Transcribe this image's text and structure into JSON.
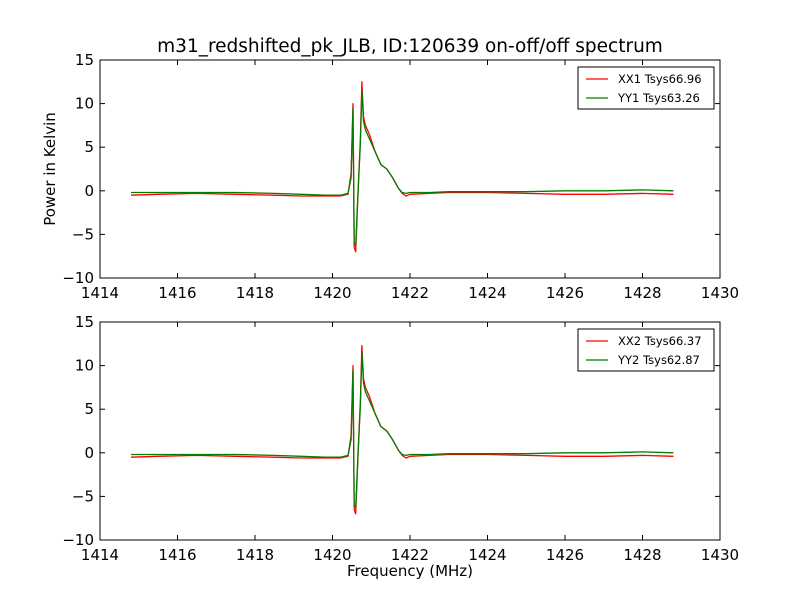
{
  "title": "m31_redshifted_pk_JLB, ID:120639 on-off/off spectrum",
  "colors": {
    "xx": "#ff0000",
    "yy": "#007f00"
  },
  "chart_data": [
    {
      "type": "line",
      "xlabel": "",
      "ylabel": "Power in Kelvin",
      "xlim": [
        1414,
        1430
      ],
      "ylim": [
        -10,
        15
      ],
      "xticks": [
        1414,
        1416,
        1418,
        1420,
        1422,
        1424,
        1426,
        1428,
        1430
      ],
      "yticks": [
        -10,
        -5,
        0,
        5,
        10,
        15
      ],
      "legend_position": "top-right",
      "series": [
        {
          "name": "XX1 Tsys66.96",
          "color": "#ff0000",
          "x": [
            1414.8,
            1415.5,
            1416.5,
            1417.5,
            1418.5,
            1419.2,
            1419.8,
            1420.2,
            1420.4,
            1420.48,
            1420.53,
            1420.56,
            1420.6,
            1420.66,
            1420.72,
            1420.76,
            1420.8,
            1420.85,
            1420.95,
            1421.1,
            1421.25,
            1421.4,
            1421.55,
            1421.7,
            1421.8,
            1421.9,
            1422.0,
            1422.5,
            1423.0,
            1424.0,
            1425.0,
            1426.0,
            1427.0,
            1428.0,
            1428.8
          ],
          "y": [
            -0.5,
            -0.4,
            -0.3,
            -0.4,
            -0.5,
            -0.6,
            -0.6,
            -0.6,
            -0.4,
            2.0,
            10.0,
            -6.5,
            -7.0,
            0.0,
            6.0,
            12.5,
            8.5,
            7.5,
            6.5,
            4.5,
            3.0,
            2.5,
            1.5,
            0.3,
            -0.3,
            -0.6,
            -0.4,
            -0.3,
            -0.2,
            -0.2,
            -0.3,
            -0.4,
            -0.4,
            -0.3,
            -0.4
          ]
        },
        {
          "name": "YY1 Tsys63.26",
          "color": "#007f00",
          "x": [
            1414.8,
            1415.5,
            1416.5,
            1417.5,
            1418.5,
            1419.2,
            1419.8,
            1420.2,
            1420.4,
            1420.48,
            1420.53,
            1420.56,
            1420.6,
            1420.66,
            1420.72,
            1420.76,
            1420.8,
            1420.85,
            1420.95,
            1421.1,
            1421.25,
            1421.4,
            1421.55,
            1421.7,
            1421.8,
            1421.9,
            1422.0,
            1422.5,
            1423.0,
            1424.0,
            1425.0,
            1426.0,
            1427.0,
            1428.0,
            1428.8
          ],
          "y": [
            -0.2,
            -0.2,
            -0.2,
            -0.2,
            -0.3,
            -0.4,
            -0.5,
            -0.5,
            -0.3,
            1.5,
            9.5,
            -6.0,
            -6.3,
            0.0,
            5.5,
            11.5,
            8.0,
            7.0,
            6.0,
            4.5,
            3.0,
            2.5,
            1.5,
            0.3,
            -0.2,
            -0.3,
            -0.2,
            -0.2,
            -0.1,
            -0.1,
            -0.1,
            0.0,
            0.0,
            0.1,
            0.0
          ]
        }
      ]
    },
    {
      "type": "line",
      "xlabel": "Frequency (MHz)",
      "ylabel": "",
      "xlim": [
        1414,
        1430
      ],
      "ylim": [
        -10,
        15
      ],
      "xticks": [
        1414,
        1416,
        1418,
        1420,
        1422,
        1424,
        1426,
        1428,
        1430
      ],
      "yticks": [
        -10,
        -5,
        0,
        5,
        10,
        15
      ],
      "legend_position": "top-right",
      "series": [
        {
          "name": "XX2 Tsys66.37",
          "color": "#ff0000",
          "x": [
            1414.8,
            1415.5,
            1416.5,
            1417.5,
            1418.5,
            1419.2,
            1419.8,
            1420.2,
            1420.4,
            1420.48,
            1420.53,
            1420.56,
            1420.6,
            1420.66,
            1420.72,
            1420.76,
            1420.8,
            1420.85,
            1420.95,
            1421.1,
            1421.25,
            1421.4,
            1421.55,
            1421.7,
            1421.8,
            1421.9,
            1422.0,
            1422.5,
            1423.0,
            1424.0,
            1425.0,
            1426.0,
            1427.0,
            1428.0,
            1428.8
          ],
          "y": [
            -0.5,
            -0.4,
            -0.3,
            -0.4,
            -0.5,
            -0.6,
            -0.6,
            -0.6,
            -0.4,
            2.0,
            10.0,
            -6.5,
            -7.0,
            0.0,
            6.0,
            12.3,
            8.5,
            7.5,
            6.5,
            4.5,
            3.0,
            2.5,
            1.5,
            0.3,
            -0.3,
            -0.6,
            -0.4,
            -0.3,
            -0.2,
            -0.2,
            -0.3,
            -0.4,
            -0.4,
            -0.3,
            -0.4
          ]
        },
        {
          "name": "YY2 Tsys62.87",
          "color": "#007f00",
          "x": [
            1414.8,
            1415.5,
            1416.5,
            1417.5,
            1418.5,
            1419.2,
            1419.8,
            1420.2,
            1420.4,
            1420.48,
            1420.53,
            1420.56,
            1420.6,
            1420.66,
            1420.72,
            1420.76,
            1420.8,
            1420.85,
            1420.95,
            1421.1,
            1421.25,
            1421.4,
            1421.55,
            1421.7,
            1421.8,
            1421.9,
            1422.0,
            1422.5,
            1423.0,
            1424.0,
            1425.0,
            1426.0,
            1427.0,
            1428.0,
            1428.8
          ],
          "y": [
            -0.2,
            -0.2,
            -0.2,
            -0.2,
            -0.3,
            -0.4,
            -0.5,
            -0.5,
            -0.3,
            1.5,
            9.5,
            -6.0,
            -6.3,
            0.0,
            5.5,
            11.5,
            8.0,
            7.0,
            6.0,
            4.5,
            3.0,
            2.5,
            1.5,
            0.3,
            -0.2,
            -0.3,
            -0.2,
            -0.2,
            -0.1,
            -0.1,
            -0.1,
            0.0,
            0.0,
            0.1,
            0.0
          ]
        }
      ]
    }
  ]
}
